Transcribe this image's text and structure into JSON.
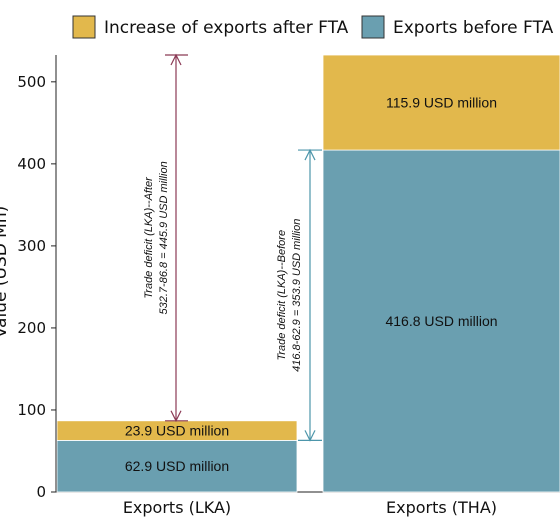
{
  "chart_data": {
    "type": "bar",
    "stacked": true,
    "categories": [
      "Exports (LKA)",
      "Exports (THA)"
    ],
    "series": [
      {
        "name": "Exports before FTA",
        "values": [
          62.9,
          416.8
        ],
        "color": "#6a9fb0",
        "labels": [
          "62.9 USD million",
          "416.8 USD million"
        ]
      },
      {
        "name": "Increase of exports after FTA",
        "values": [
          23.9,
          115.9
        ],
        "color": "#e2b84c",
        "labels": [
          "23.9 USD million",
          "115.9 USD million"
        ]
      }
    ],
    "ylabel": "Value (USD Mn)",
    "ylim": [
      0,
      532.7
    ],
    "yticks": [
      0,
      100,
      200,
      300,
      400,
      500
    ],
    "legend": [
      "Increase of exports after FTA",
      "Exports before FTA"
    ],
    "legend_position": "top",
    "annotations": [
      {
        "lines": [
          "Trade deficit (LKA)--After",
          "532.7-86.8 = 445.9 USD million"
        ],
        "from": 86.8,
        "to": 532.7,
        "color": "#8b3a55"
      },
      {
        "lines": [
          "Trade deficit (LKA)--Before",
          "416.8-62.9 = 353.9 USD million"
        ],
        "from": 62.9,
        "to": 416.8,
        "color": "#4d96ab"
      }
    ]
  }
}
